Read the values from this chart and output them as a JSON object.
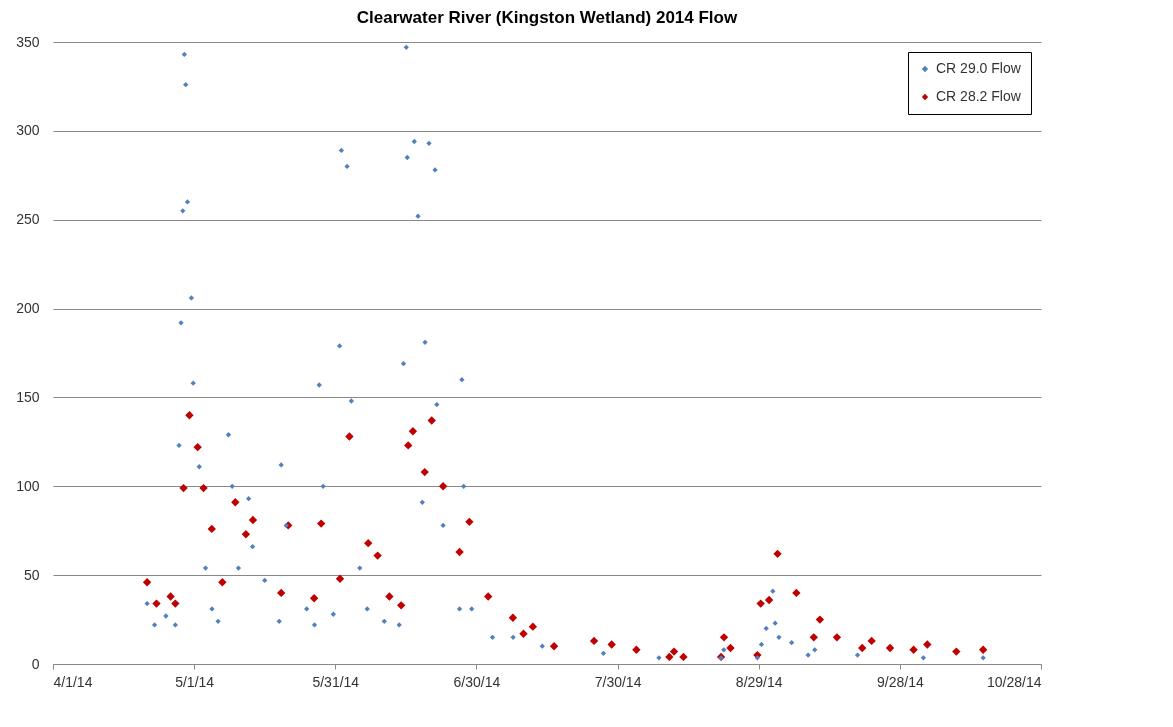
{
  "chart_data": {
    "type": "scatter",
    "title": "Clearwater River (Kingston Wetland) 2014 Flow",
    "xlim": [
      "2014-04-01",
      "2014-10-28"
    ],
    "xticks": [
      {
        "value": "2014-04-01",
        "label": "4/1/14"
      },
      {
        "value": "2014-05-01",
        "label": "5/1/14"
      },
      {
        "value": "2014-05-31",
        "label": "5/31/14"
      },
      {
        "value": "2014-06-30",
        "label": "6/30/14"
      },
      {
        "value": "2014-07-30",
        "label": "7/30/14"
      },
      {
        "value": "2014-08-29",
        "label": "8/29/14"
      },
      {
        "value": "2014-09-28",
        "label": "9/28/14"
      },
      {
        "value": "2014-10-28",
        "label": "10/28/14"
      }
    ],
    "ylim": [
      0,
      350
    ],
    "yticks": [
      0,
      50,
      100,
      150,
      200,
      250,
      300,
      350
    ],
    "grid": "y",
    "legend": "top right",
    "marker": "diamond",
    "series": [
      {
        "name": "CR 29.0 Flow",
        "color": "#4f81bd",
        "x": [
          "2014-04-21",
          "2014-04-22T14:00",
          "2014-04-25",
          "2014-04-27",
          "2014-04-27T19:00",
          "2014-04-28T05:00",
          "2014-04-28T14:00",
          "2014-04-28T22:00",
          "2014-04-29T05:00",
          "2014-04-29T14:00",
          "2014-04-30T10:00",
          "2014-04-30T19:00",
          "2014-05-02T02:00",
          "2014-05-03T10:00",
          "2014-05-04T19:00",
          "2014-05-06T02:00",
          "2014-05-08T07:00",
          "2014-05-09T02:00",
          "2014-05-10T10:00",
          "2014-05-12T14:00",
          "2014-05-13T10:00",
          "2014-05-16",
          "2014-05-19T02:00",
          "2014-05-19T12:00",
          "2014-05-20T14:00",
          "2014-05-24T22:00",
          "2014-05-26T14:00",
          "2014-05-27T14:00",
          "2014-05-28T10:00",
          "2014-05-30T14:00",
          "2014-05-31T22:00",
          "2014-06-01T07:00",
          "2014-06-02T12:00",
          "2014-06-03T10:00",
          "2014-06-05T05:00",
          "2014-06-06T19:00",
          "2014-06-10T10:00",
          "2014-06-13T14:00",
          "2014-06-14T12:00",
          "2014-06-15T02:00",
          "2014-06-15T07:00",
          "2014-06-16T19:00",
          "2014-06-17T14:00",
          "2014-06-18T12:00",
          "2014-06-19T02:00",
          "2014-06-19T22:00",
          "2014-06-21T05:00",
          "2014-06-21T14:00",
          "2014-06-22T22:00",
          "2014-06-26T10:00",
          "2014-06-26T22:00",
          "2014-06-27T07:00",
          "2014-06-29",
          "2014-07-03T10:00",
          "2014-07-07T19:00",
          "2014-07-14",
          "2014-07-27",
          "2014-08-07T19:00",
          "2014-08-21",
          "2014-08-21T14:00",
          "2014-08-28T17:00",
          "2014-08-29T14:00",
          "2014-08-30T14:00",
          "2014-09-01",
          "2014-09-01T12:00",
          "2014-09-02T07:00",
          "2014-09-05",
          "2014-09-08T12:00",
          "2014-09-09T22:00",
          "2014-09-19",
          "2014-10-03",
          "2014-10-15T17:00"
        ],
        "values": [
          34,
          22,
          27,
          22,
          123,
          192,
          255,
          343,
          326,
          260,
          206,
          158,
          111,
          54,
          31,
          24,
          129,
          100,
          54,
          93,
          66,
          47,
          24,
          112,
          78,
          31,
          22,
          157,
          100,
          28,
          179,
          289,
          280,
          148,
          54,
          31,
          24,
          22,
          169,
          347,
          285,
          294,
          252,
          91,
          181,
          293,
          278,
          146,
          78,
          31,
          160,
          100,
          31,
          15,
          15,
          10,
          6,
          3.5,
          3.5,
          8,
          3.5,
          11,
          20,
          41,
          23,
          15,
          12,
          5,
          8,
          5,
          3.5,
          3.5
        ]
      },
      {
        "name": "CR 28.2 Flow",
        "color": "#c00000",
        "x": [
          "2014-04-21",
          "2014-04-23",
          "2014-04-26",
          "2014-04-27",
          "2014-04-28T18:00",
          "2014-04-30",
          "2014-05-01T18:00",
          "2014-05-03",
          "2014-05-04T18:00",
          "2014-05-07",
          "2014-05-09T18:00",
          "2014-05-12",
          "2014-05-13T12:00",
          "2014-05-19T12:00",
          "2014-05-21",
          "2014-05-26T12:00",
          "2014-05-28",
          "2014-06-01",
          "2014-06-03",
          "2014-06-07",
          "2014-06-09",
          "2014-06-11T12:00",
          "2014-06-14",
          "2014-06-15T12:00",
          "2014-06-16T12:00",
          "2014-06-19",
          "2014-06-20T12:00",
          "2014-06-22T22:00",
          "2014-06-26T10:00",
          "2014-06-28T12:00",
          "2014-07-02T12:00",
          "2014-07-07T18:00",
          "2014-07-10",
          "2014-07-12",
          "2014-07-16T12:00",
          "2014-07-25",
          "2014-07-28T18:00",
          "2014-08-03",
          "2014-08-10",
          "2014-08-11",
          "2014-08-13",
          "2014-08-21",
          "2014-08-21T15:00",
          "2014-08-23",
          "2014-08-28T17:00",
          "2014-08-29T10:00",
          "2014-08-31T05:00",
          "2014-09-02",
          "2014-09-06",
          "2014-09-09T17:00",
          "2014-09-11",
          "2014-09-14T15:00",
          "2014-09-20",
          "2014-09-22",
          "2014-09-25T22:00",
          "2014-09-30T22:00",
          "2014-10-03T20:00",
          "2014-10-10",
          "2014-10-15T17:00"
        ],
        "values": [
          46,
          34,
          38,
          34,
          99,
          140,
          122,
          99,
          76,
          46,
          91,
          73,
          81,
          40,
          78,
          37,
          79,
          48,
          128,
          68,
          61,
          38,
          33,
          123,
          131,
          108,
          137,
          100,
          63,
          80,
          38,
          26,
          17,
          21,
          10,
          13,
          11,
          8,
          4,
          7,
          4,
          4,
          15,
          9,
          5,
          34,
          36,
          62,
          40,
          15,
          25,
          15,
          9,
          13,
          9,
          8,
          11,
          7,
          8
        ]
      }
    ]
  }
}
